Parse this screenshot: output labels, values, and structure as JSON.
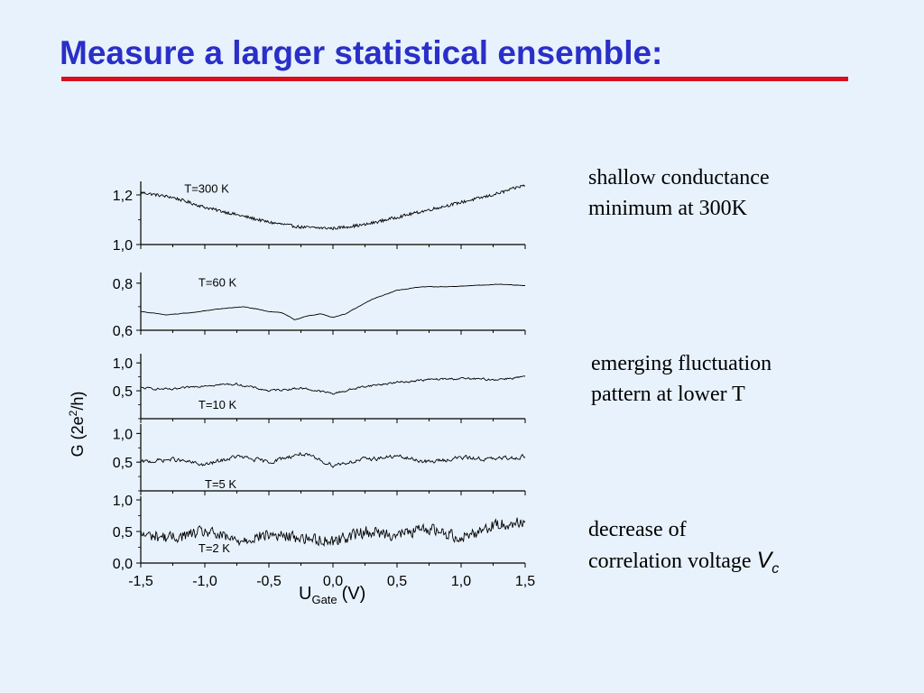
{
  "title": "Measure a larger statistical ensemble:",
  "annotations": {
    "a300": [
      "shallow conductance",
      "minimum at 300K"
    ],
    "lowT": [
      "emerging fluctuation",
      "pattern at lower T"
    ],
    "vc_line1": "decrease of",
    "vc_line2": "correlation voltage",
    "vc_symbol": "V",
    "vc_sub": "c"
  },
  "colors": {
    "title": "#2a2fc8",
    "rule": "#d8101e",
    "background": "#e8f2fd",
    "trace": "#000000"
  },
  "chart_data": {
    "type": "line",
    "x_axis": {
      "label_main": "U",
      "label_sub": "Gate",
      "label_unit": "(V)",
      "range": [
        -1.5,
        1.5
      ],
      "ticks": [
        -1.5,
        -1.0,
        -0.5,
        0.0,
        0.5,
        1.0,
        1.5
      ],
      "tick_labels": [
        "-1,5",
        "-1,0",
        "-0,5",
        "0,0",
        "0,5",
        "1,0",
        "1,5"
      ]
    },
    "y_axis": {
      "label_main": "G (2e",
      "label_sup": "2",
      "label_end": "/h)"
    },
    "panels": [
      {
        "name": "T=300 K",
        "ylim": [
          1.0,
          1.24
        ],
        "yticks": [
          1.0,
          1.2
        ],
        "ytick_labels": [
          "1,0",
          "1,2"
        ],
        "label_at": [
          -1.16,
          1.21
        ],
        "x": [
          -1.5,
          -1.25,
          -1.0,
          -0.75,
          -0.5,
          -0.25,
          0.0,
          0.25,
          0.5,
          0.75,
          1.0,
          1.25,
          1.5
        ],
        "values": [
          1.21,
          1.19,
          1.15,
          1.12,
          1.09,
          1.07,
          1.065,
          1.08,
          1.11,
          1.14,
          1.17,
          1.2,
          1.24
        ]
      },
      {
        "name": "T=60 K",
        "ylim": [
          0.6,
          0.83
        ],
        "yticks": [
          0.6,
          0.8
        ],
        "ytick_labels": [
          "0,6",
          "0,8"
        ],
        "label_at": [
          -1.05,
          0.785
        ],
        "x": [
          -1.5,
          -1.3,
          -1.1,
          -0.9,
          -0.7,
          -0.5,
          -0.4,
          -0.3,
          -0.2,
          -0.1,
          0.0,
          0.1,
          0.3,
          0.5,
          0.7,
          0.9,
          1.1,
          1.3,
          1.5
        ],
        "values": [
          0.68,
          0.665,
          0.675,
          0.69,
          0.7,
          0.68,
          0.675,
          0.645,
          0.66,
          0.67,
          0.655,
          0.67,
          0.73,
          0.77,
          0.785,
          0.785,
          0.79,
          0.795,
          0.79
        ]
      },
      {
        "name": "T=10 K",
        "ylim": [
          0.0,
          1.1
        ],
        "yticks": [
          0.5,
          1.0
        ],
        "ytick_labels": [
          "0,5",
          "1,0"
        ],
        "label_at": [
          -1.05,
          0.18
        ],
        "x": [
          -1.5,
          -1.25,
          -1.0,
          -0.75,
          -0.5,
          -0.25,
          0.0,
          0.25,
          0.5,
          0.75,
          1.0,
          1.25,
          1.5
        ],
        "values": [
          0.55,
          0.52,
          0.6,
          0.62,
          0.5,
          0.55,
          0.45,
          0.58,
          0.65,
          0.7,
          0.72,
          0.7,
          0.75
        ]
      },
      {
        "name": "T=5 K",
        "ylim": [
          0.0,
          1.1
        ],
        "yticks": [
          0.5,
          1.0
        ],
        "ytick_labels": [
          "0,5",
          "1,0"
        ],
        "label_at": [
          -1.0,
          0.05
        ],
        "x": [
          -1.5,
          -1.25,
          -1.0,
          -0.75,
          -0.5,
          -0.25,
          0.0,
          0.25,
          0.5,
          0.75,
          1.0,
          1.25,
          1.5
        ],
        "values": [
          0.5,
          0.55,
          0.45,
          0.6,
          0.5,
          0.65,
          0.45,
          0.55,
          0.6,
          0.5,
          0.58,
          0.55,
          0.6
        ]
      },
      {
        "name": "T=2 K",
        "ylim": [
          0.0,
          1.0
        ],
        "yticks": [
          0.0,
          0.5,
          1.0
        ],
        "ytick_labels": [
          "0,0",
          "0,5",
          "1,0"
        ],
        "label_at": [
          -1.05,
          0.17
        ],
        "x": [
          -1.5,
          -1.25,
          -1.0,
          -0.75,
          -0.5,
          -0.25,
          0.0,
          0.25,
          0.5,
          0.75,
          1.0,
          1.25,
          1.5
        ],
        "values": [
          0.45,
          0.4,
          0.5,
          0.35,
          0.45,
          0.4,
          0.35,
          0.5,
          0.45,
          0.55,
          0.4,
          0.6,
          0.65
        ]
      }
    ]
  }
}
